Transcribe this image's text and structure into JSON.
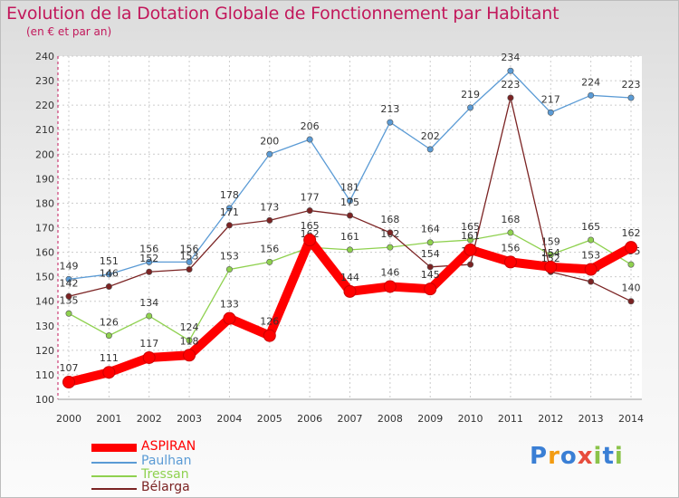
{
  "header": {
    "title": "Evolution de la Dotation Globale de Fonctionnement par Habitant",
    "subtitle": "(en € et par an)"
  },
  "chart_data": {
    "type": "line",
    "x": [
      "2000",
      "2001",
      "2002",
      "2003",
      "2004",
      "2005",
      "2006",
      "2007",
      "2008",
      "2009",
      "2010",
      "2011",
      "2012",
      "2013",
      "2014"
    ],
    "ylim": [
      100,
      240
    ],
    "yticks": [
      100,
      110,
      120,
      130,
      140,
      150,
      160,
      170,
      180,
      190,
      200,
      210,
      220,
      230,
      240
    ],
    "grid": true,
    "legend_position": "bottom-left",
    "series": [
      {
        "name": "ASPIRAN",
        "color": "#ff0000",
        "values": [
          107,
          111,
          117,
          118,
          133,
          126,
          165,
          144,
          146,
          145,
          161,
          156,
          154,
          153,
          162
        ],
        "labels": [
          "107",
          "111",
          "117",
          "118",
          "133",
          "126",
          "165",
          "144",
          "146",
          "145",
          "161",
          "156",
          "154",
          "153",
          "162"
        ]
      },
      {
        "name": "Paulhan",
        "color": "#5b9bd5",
        "values": [
          149,
          151,
          156,
          156,
          178,
          200,
          206,
          181,
          213,
          202,
          219,
          234,
          217,
          224,
          223
        ],
        "labels": [
          "149",
          "151",
          "156",
          "156",
          "178",
          "200",
          "206",
          "181",
          "213",
          "202",
          "219",
          "234",
          "217",
          "224",
          "223"
        ]
      },
      {
        "name": "Tressan",
        "color": "#8fd14f",
        "values": [
          135,
          126,
          134,
          124,
          153,
          156,
          162,
          161,
          162,
          164,
          165,
          168,
          159,
          165,
          155
        ],
        "labels": [
          "135",
          "126",
          "134",
          "124",
          "153",
          "156",
          "162",
          "161",
          "162",
          "164",
          "165",
          "168",
          "159",
          "165",
          "155"
        ]
      },
      {
        "name": "Bélarga",
        "color": "#7b2323",
        "values": [
          142,
          146,
          152,
          153,
          171,
          173,
          177,
          175,
          168,
          154,
          155,
          223,
          152,
          148,
          140
        ],
        "labels": [
          "142",
          "146",
          "152",
          "153",
          "171",
          "173",
          "177",
          "175",
          "168",
          "154",
          "155",
          "223",
          "152",
          "148",
          "140"
        ]
      }
    ]
  },
  "logo": {
    "letters": [
      "P",
      "r",
      "o",
      "x",
      "i",
      "t",
      "i"
    ],
    "colors": [
      "#3a7fd5",
      "#f39c12",
      "#3a7fd5",
      "#e74c3c",
      "#8bc34a",
      "#3a7fd5",
      "#8bc34a"
    ]
  }
}
